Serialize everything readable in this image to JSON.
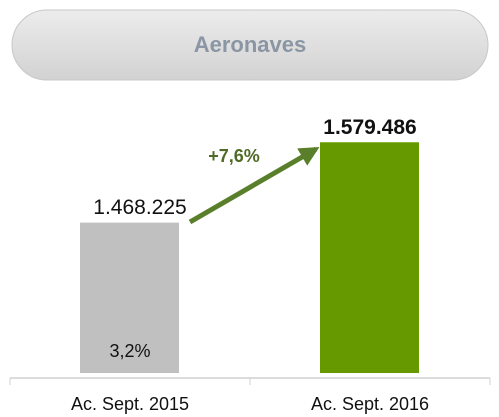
{
  "chart_data": {
    "type": "bar",
    "title": "Aeronaves",
    "categories": [
      "Ac. Sept. 2015",
      "Ac. Sept. 2016"
    ],
    "values": [
      1468225,
      1579486
    ],
    "value_labels": [
      "1.468.225",
      "1.579.486"
    ],
    "colors": [
      "#c0c0c0",
      "#669900"
    ],
    "ylim": [
      1260000,
      1620000
    ],
    "annotations": [
      {
        "text": "+7,6%"
      },
      {
        "text": "3,2%"
      }
    ]
  }
}
